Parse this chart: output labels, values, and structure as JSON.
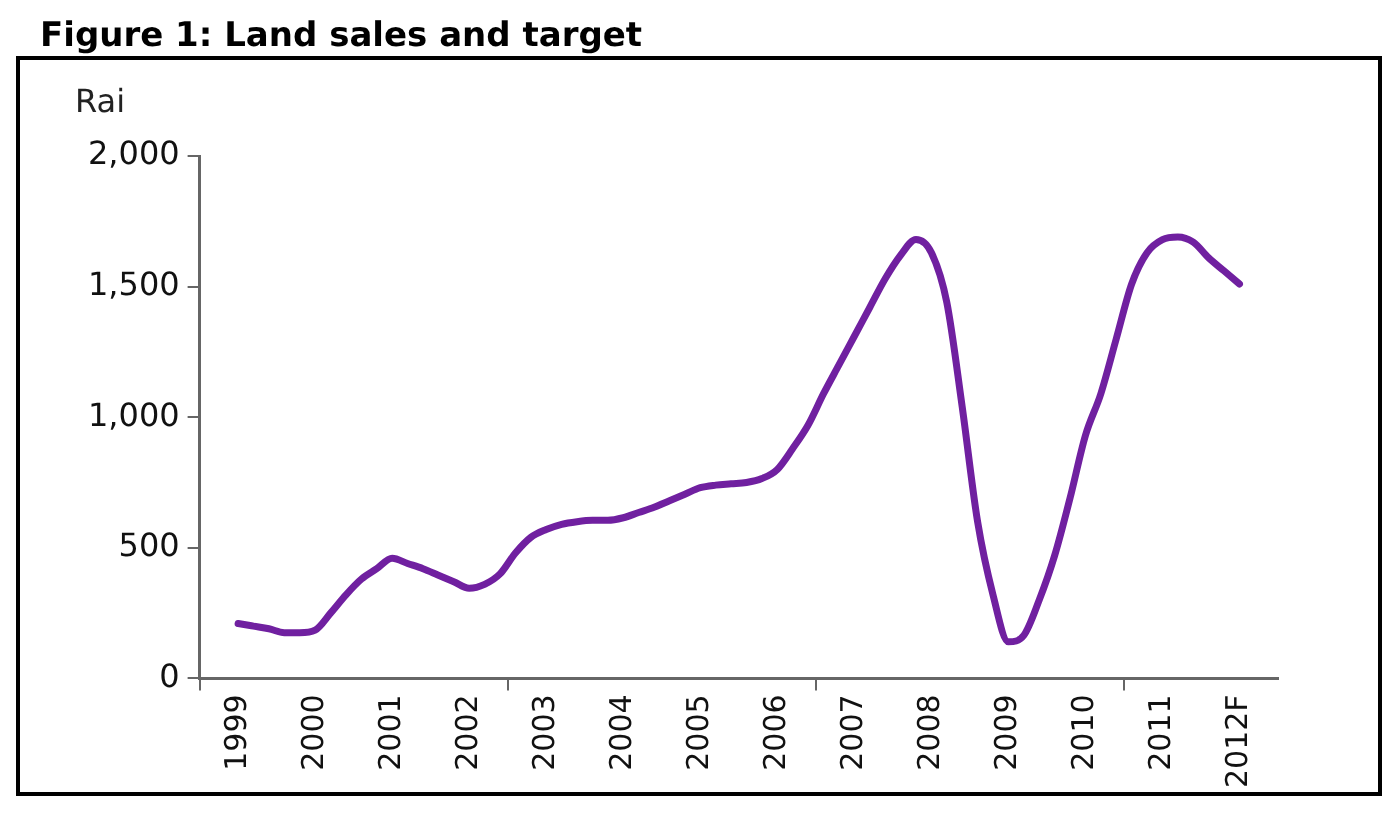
{
  "chart_data": {
    "type": "line",
    "title": "Figure 1: Land sales and target",
    "ylabel": "Rai",
    "categories": [
      null,
      null,
      "1999",
      null,
      null,
      null,
      null,
      "2000",
      null,
      null,
      null,
      null,
      "2001",
      null,
      null,
      null,
      null,
      "2002",
      null,
      null,
      null,
      null,
      "2003",
      null,
      null,
      null,
      null,
      "2004",
      null,
      null,
      null,
      null,
      "2005",
      null,
      null,
      null,
      null,
      "2006",
      null,
      null,
      null,
      null,
      "2007",
      null,
      null,
      null,
      null,
      "2008",
      null,
      null,
      null,
      null,
      "2009",
      null,
      null,
      null,
      null,
      "2010",
      null,
      null,
      null,
      null,
      "2011",
      null,
      null,
      null,
      null,
      "2012F",
      null,
      null
    ],
    "series": [
      {
        "color": "#7020a0",
        "values": [
          null,
          null,
          210,
          200,
          190,
          175,
          175,
          185,
          250,
          320,
          380,
          420,
          460,
          440,
          420,
          395,
          370,
          345,
          360,
          400,
          480,
          540,
          570,
          590,
          600,
          605,
          605,
          615,
          635,
          655,
          680,
          705,
          730,
          740,
          745,
          750,
          765,
          800,
          880,
          970,
          1090,
          1200,
          1310,
          1420,
          1530,
          1620,
          1680,
          1630,
          1440,
          1040,
          600,
          320,
          140,
          165,
          300,
          470,
          690,
          930,
          1090,
          1300,
          1510,
          1630,
          1680,
          1690,
          1670,
          1610,
          1560,
          1510,
          null,
          null
        ]
      }
    ],
    "ylim": [
      0,
      2000
    ],
    "yticks": [
      0,
      {
        "value": 500,
        "label": "500"
      },
      {
        "value": 1000,
        "label": "1,000"
      },
      {
        "value": 1500,
        "label": "1,500"
      },
      {
        "value": 2000,
        "label": "2,000"
      }
    ],
    "marker": "none",
    "line_style": "solid"
  }
}
